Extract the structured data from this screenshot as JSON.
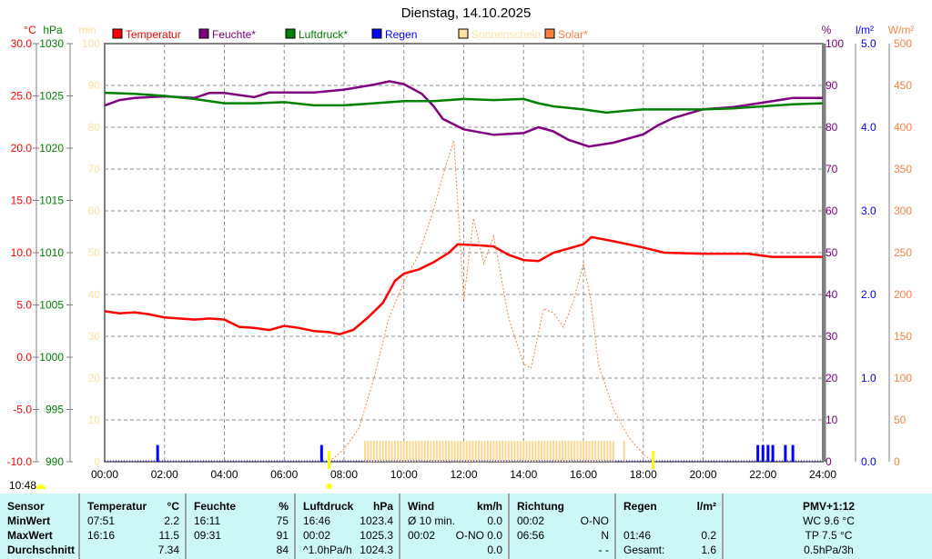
{
  "title": "Dienstag, 14.10.2025",
  "legend": [
    {
      "label": "Temperatur",
      "color": "#ff0000"
    },
    {
      "label": "Feuchte*",
      "color": "#800080"
    },
    {
      "label": "Luftdruck*",
      "color": "#008000"
    },
    {
      "label": "Regen",
      "color": "#0000ff"
    },
    {
      "label": "Sonnenschein",
      "color": "#ffe0a0"
    },
    {
      "label": "Solar*",
      "color": "#ff8040"
    }
  ],
  "axes": {
    "temp_unit": "°C",
    "press_unit": "hPa",
    "min_unit": "min",
    "hum_unit": "%",
    "rain_unit": "l/m²",
    "solar_unit": "W/m²",
    "temp_ticks": [
      "30.0",
      "25.0",
      "20.0",
      "15.0",
      "10.0",
      "5.0",
      "0.0",
      "-5.0",
      "-10.0"
    ],
    "press_ticks": [
      "1030",
      "1025",
      "1020",
      "1015",
      "1010",
      "1005",
      "1000",
      "995",
      "990"
    ],
    "min_ticks": [
      "100",
      "90",
      "80",
      "70",
      "60",
      "50",
      "40",
      "30",
      "20",
      "10",
      "0"
    ],
    "hum_ticks": [
      "100",
      "90",
      "80",
      "70",
      "60",
      "50",
      "40",
      "30",
      "20",
      "10",
      "0"
    ],
    "rain_ticks": [
      "5.0",
      "4.0",
      "3.0",
      "2.0",
      "1.0",
      "0.0"
    ],
    "solar_ticks": [
      "500",
      "450",
      "400",
      "350",
      "300",
      "250",
      "200",
      "150",
      "100",
      "50",
      "0"
    ],
    "time_ticks": [
      "00:00",
      "02:00",
      "04:00",
      "06:00",
      "08:00",
      "10:00",
      "12:00",
      "14:00",
      "16:00",
      "18:00",
      "20:00",
      "22:00",
      "24:00"
    ]
  },
  "current_time": "10:48",
  "chart_data": {
    "type": "line",
    "title": "Dienstag, 14.10.2025",
    "x_unit": "hours",
    "xlim": [
      0,
      24
    ],
    "sunrise": 7.5,
    "sunset": 18.33,
    "series": [
      {
        "name": "Temperatur",
        "unit": "°C",
        "ylim": [
          -10,
          30
        ],
        "points": [
          [
            0,
            4.4
          ],
          [
            0.5,
            4.2
          ],
          [
            1,
            4.3
          ],
          [
            1.5,
            4.1
          ],
          [
            2,
            3.8
          ],
          [
            3,
            3.6
          ],
          [
            3.5,
            3.7
          ],
          [
            4,
            3.6
          ],
          [
            4.5,
            2.9
          ],
          [
            5,
            2.8
          ],
          [
            5.5,
            2.6
          ],
          [
            6,
            3.0
          ],
          [
            6.5,
            2.8
          ],
          [
            7,
            2.5
          ],
          [
            7.5,
            2.4
          ],
          [
            7.85,
            2.2
          ],
          [
            8.3,
            2.6
          ],
          [
            8.8,
            3.8
          ],
          [
            9.3,
            5.2
          ],
          [
            9.7,
            7.3
          ],
          [
            10,
            8.0
          ],
          [
            10.5,
            8.4
          ],
          [
            11,
            9.1
          ],
          [
            11.5,
            10.0
          ],
          [
            11.8,
            10.8
          ],
          [
            12.5,
            10.7
          ],
          [
            13,
            10.6
          ],
          [
            13.5,
            9.8
          ],
          [
            14,
            9.3
          ],
          [
            14.5,
            9.2
          ],
          [
            15,
            10.0
          ],
          [
            15.5,
            10.4
          ],
          [
            16,
            10.8
          ],
          [
            16.27,
            11.5
          ],
          [
            17,
            11.1
          ],
          [
            18,
            10.5
          ],
          [
            18.7,
            10.0
          ],
          [
            20,
            9.9
          ],
          [
            21.5,
            9.9
          ],
          [
            22.3,
            9.6
          ],
          [
            24,
            9.6
          ]
        ]
      },
      {
        "name": "Feuchte*",
        "unit": "%",
        "ylim": [
          0,
          100
        ],
        "points": [
          [
            0,
            85.2
          ],
          [
            0.5,
            86.5
          ],
          [
            1,
            87
          ],
          [
            2,
            87.4
          ],
          [
            3,
            87
          ],
          [
            3.5,
            88.2
          ],
          [
            4,
            88.2
          ],
          [
            5,
            87.2
          ],
          [
            5.5,
            88.3
          ],
          [
            7,
            88.3
          ],
          [
            8,
            89
          ],
          [
            9,
            90.2
          ],
          [
            9.52,
            91
          ],
          [
            10,
            90.3
          ],
          [
            10.6,
            88
          ],
          [
            11,
            85
          ],
          [
            11.3,
            82
          ],
          [
            12,
            79.5
          ],
          [
            13,
            78.2
          ],
          [
            14,
            78.6
          ],
          [
            14.5,
            80
          ],
          [
            15,
            79
          ],
          [
            15.5,
            77
          ],
          [
            16.18,
            75.4
          ],
          [
            17,
            76.3
          ],
          [
            18,
            78.3
          ],
          [
            18.5,
            80.5
          ],
          [
            19,
            82.2
          ],
          [
            20,
            84.3
          ],
          [
            21,
            84.8
          ],
          [
            22,
            85.9
          ],
          [
            23,
            87
          ],
          [
            24,
            87
          ]
        ]
      },
      {
        "name": "Luftdruck*",
        "unit": "hPa",
        "ylim": [
          990,
          1030
        ],
        "points": [
          [
            0,
            1025.3
          ],
          [
            1,
            1025.2
          ],
          [
            2,
            1025.0
          ],
          [
            3,
            1024.7
          ],
          [
            4,
            1024.3
          ],
          [
            5,
            1024.3
          ],
          [
            6,
            1024.4
          ],
          [
            7,
            1024.1
          ],
          [
            8,
            1024.1
          ],
          [
            9,
            1024.3
          ],
          [
            10,
            1024.5
          ],
          [
            11,
            1024.5
          ],
          [
            12,
            1024.7
          ],
          [
            13,
            1024.6
          ],
          [
            14,
            1024.7
          ],
          [
            14.5,
            1024.3
          ],
          [
            15,
            1024.0
          ],
          [
            16,
            1023.7
          ],
          [
            16.77,
            1023.4
          ],
          [
            17.5,
            1023.6
          ],
          [
            18,
            1023.7
          ],
          [
            20,
            1023.7
          ],
          [
            21,
            1023.8
          ],
          [
            22,
            1024.0
          ],
          [
            23,
            1024.2
          ],
          [
            24,
            1024.3
          ]
        ]
      },
      {
        "name": "Solar*",
        "unit": "W/m²",
        "ylim": [
          0,
          500
        ],
        "points": [
          [
            7.5,
            0
          ],
          [
            8,
            15
          ],
          [
            8.5,
            40
          ],
          [
            9,
            100
          ],
          [
            9.5,
            172
          ],
          [
            10,
            215
          ],
          [
            10.5,
            248
          ],
          [
            11,
            302
          ],
          [
            11.33,
            346
          ],
          [
            11.67,
            384
          ],
          [
            12,
            193
          ],
          [
            12.33,
            291
          ],
          [
            12.67,
            237
          ],
          [
            13,
            270
          ],
          [
            13.5,
            172
          ],
          [
            14,
            117
          ],
          [
            14.25,
            112
          ],
          [
            14.67,
            183
          ],
          [
            15,
            178
          ],
          [
            15.33,
            161
          ],
          [
            15.67,
            193
          ],
          [
            16,
            237
          ],
          [
            16.25,
            193
          ],
          [
            16.5,
            117
          ],
          [
            17,
            63
          ],
          [
            17.5,
            30
          ],
          [
            18,
            9
          ],
          [
            18.33,
            0
          ]
        ]
      }
    ],
    "rain": {
      "unit": "l/m²",
      "ylim": [
        0,
        5
      ],
      "bars": [
        [
          1.77,
          0.2
        ],
        [
          7.25,
          0.2
        ],
        [
          21.83,
          0.2
        ],
        [
          22,
          0.2
        ],
        [
          22.17,
          0.2
        ],
        [
          22.33,
          0.2
        ],
        [
          22.75,
          0.2
        ],
        [
          23,
          0.2
        ]
      ]
    },
    "sunshine": {
      "unit": "min",
      "ylim": [
        0,
        100
      ],
      "ranges": [
        [
          8.67,
          17.0,
          5
        ],
        [
          17.33,
          17.4,
          5
        ]
      ]
    }
  },
  "table": {
    "columns": [
      {
        "header": [
          "Sensor",
          ""
        ],
        "rows": [
          [
            "MinWert",
            ""
          ],
          [
            "MaxWert",
            ""
          ],
          [
            "Durchschnitt",
            ""
          ]
        ]
      },
      {
        "header": [
          "Temperatur",
          "°C"
        ],
        "rows": [
          [
            "07:51",
            "2.2"
          ],
          [
            "16:16",
            "11.5"
          ],
          [
            "",
            "7.34"
          ]
        ]
      },
      {
        "header": [
          "Feuchte",
          "%"
        ],
        "rows": [
          [
            "16:11",
            "75"
          ],
          [
            "09:31",
            "91"
          ],
          [
            "",
            "84"
          ]
        ]
      },
      {
        "header": [
          "Luftdruck",
          "hPa"
        ],
        "rows": [
          [
            "16:46",
            "1023.4"
          ],
          [
            "00:02",
            "1025.3"
          ],
          [
            "^1.0hPa/h",
            "1024.3"
          ]
        ]
      },
      {
        "header": [
          "Wind",
          "km/h"
        ],
        "rows": [
          [
            "Ø 10 min.",
            "0.0"
          ],
          [
            "00:02",
            "O-NO 0.0"
          ],
          [
            "",
            "0.0"
          ]
        ]
      },
      {
        "header": [
          "Richtung",
          ""
        ],
        "rows": [
          [
            "00:02",
            "O-NO"
          ],
          [
            "06:56",
            "N"
          ],
          [
            "",
            "- -"
          ]
        ]
      },
      {
        "header": [
          "Regen",
          "l/m²"
        ],
        "rows": [
          [
            "",
            ""
          ],
          [
            "01:46",
            "0.2"
          ],
          [
            "Gesamt:",
            "1.6"
          ]
        ]
      }
    ],
    "pmv": {
      "header": "PMV+1:12",
      "rows": [
        "WC 9.6 °C",
        "TP 7.5 °C",
        "0.5hPa/3h"
      ]
    }
  }
}
